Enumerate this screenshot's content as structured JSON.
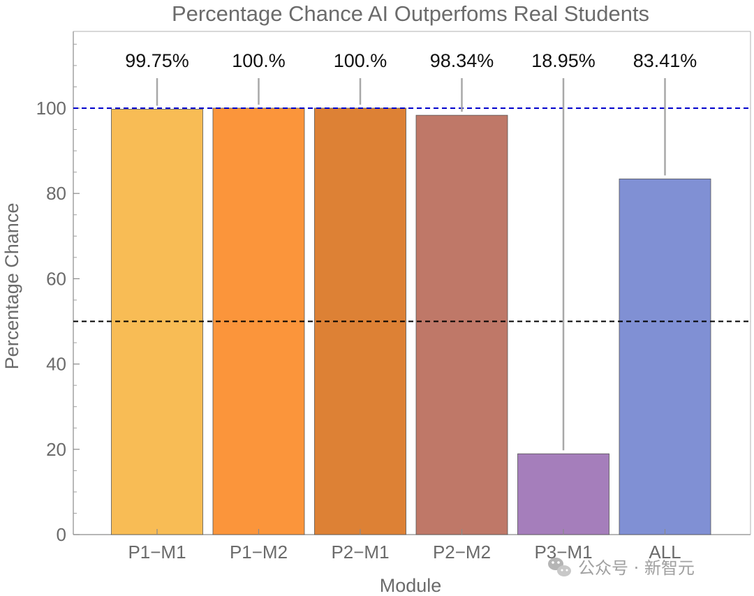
{
  "chart_data": {
    "type": "bar",
    "title": "Percentage Chance AI Outperfoms Real Students",
    "xlabel": "Module",
    "ylabel": "Percentage Chance",
    "categories": [
      "P1−M1",
      "P1−M2",
      "P2−M1",
      "P2−M2",
      "P3−M1",
      "ALL"
    ],
    "values": [
      99.75,
      100,
      100,
      98.34,
      18.95,
      83.41
    ],
    "data_labels": [
      "99.75%",
      "100.%",
      "100.%",
      "98.34%",
      "18.95%",
      "83.41%"
    ],
    "colors": [
      "#F8BC55",
      "#FB953B",
      "#DD8135",
      "#BF7868",
      "#A57EBB",
      "#8090D4"
    ],
    "ylim": [
      0,
      100
    ],
    "yticks": [
      0,
      20,
      40,
      60,
      80,
      100
    ],
    "reference_lines": [
      {
        "y": 100,
        "color": "#0000CC",
        "style": "dashed"
      },
      {
        "y": 50,
        "color": "#000000",
        "style": "dashed"
      }
    ],
    "grid": false
  },
  "watermark": {
    "text": "公众号 · 新智元"
  }
}
